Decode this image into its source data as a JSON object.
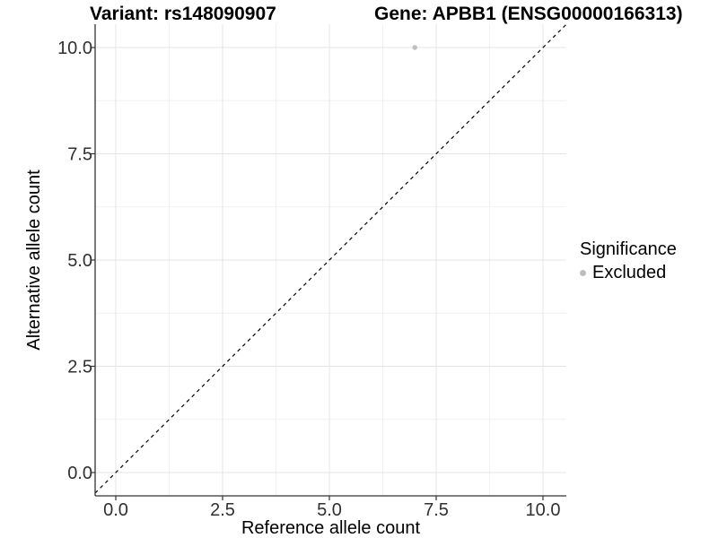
{
  "title": {
    "left": "Variant: rs148090907",
    "right": "Gene: APBB1 (ENSG00000166313)"
  },
  "chart_data": {
    "type": "scatter",
    "title": "Variant: rs148090907   Gene: APBB1 (ENSG00000166313)",
    "xlabel": "Reference allele count",
    "ylabel": "Alternative allele count",
    "xlim": [
      -0.48,
      10.55
    ],
    "ylim": [
      -0.55,
      10.55
    ],
    "x_ticks": [
      0.0,
      2.5,
      5.0,
      7.5,
      10.0
    ],
    "y_ticks": [
      0.0,
      2.5,
      5.0,
      7.5,
      10.0
    ],
    "x_tick_labels": [
      "0.0",
      "2.5",
      "5.0",
      "7.5",
      "10.0"
    ],
    "y_tick_labels": [
      "0.0",
      "2.5",
      "5.0",
      "7.5",
      "10.0"
    ],
    "minor_ticks": [
      1.25,
      3.75,
      6.25,
      8.75
    ],
    "grid": true,
    "series": [
      {
        "name": "Excluded",
        "color": "#bdbdbd",
        "points": [
          {
            "x": 7,
            "y": 10
          }
        ]
      }
    ],
    "reference_line": {
      "type": "identity",
      "slope": 1,
      "intercept": 0,
      "style": "dashed",
      "color": "#000000"
    },
    "legend": {
      "title": "Significance",
      "position": "right",
      "entries": [
        {
          "label": "Excluded",
          "color": "#bdbdbd"
        }
      ]
    }
  },
  "colors": {
    "background": "#ffffff",
    "axis_line": "#333333",
    "tick_text": "#303030",
    "grid_major": "#e4e4e4",
    "grid_minor": "#f1f1f1",
    "point": "#bdbdbd"
  }
}
